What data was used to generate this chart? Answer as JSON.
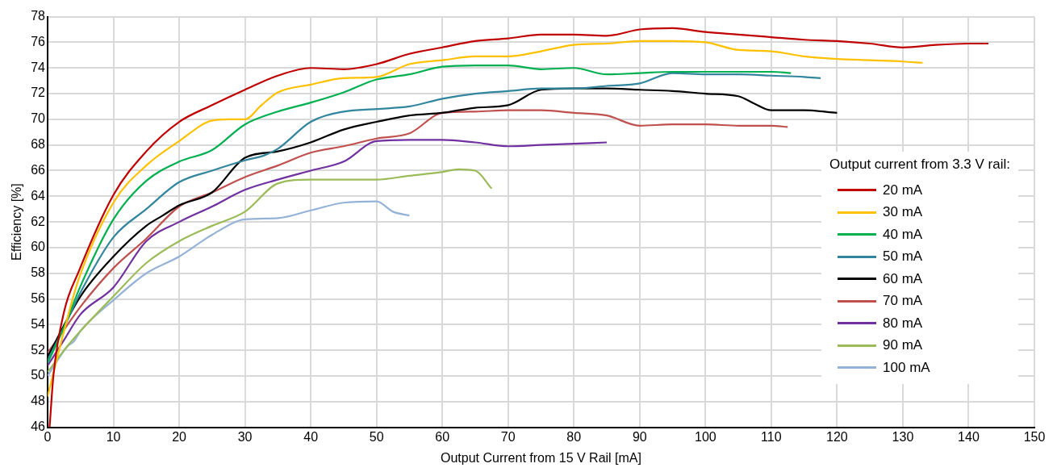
{
  "chart_data": {
    "type": "line",
    "xlabel": "Output Current from 15 V Rail [mA]",
    "ylabel": "Efficiency [%]",
    "legend_title": "Output current from 3.3 V rail:",
    "legend": "right",
    "grid": true,
    "line_style": "solid",
    "marker": "none",
    "xlim": [
      0,
      150
    ],
    "xticks": [
      0,
      10,
      20,
      30,
      40,
      50,
      60,
      70,
      80,
      90,
      100,
      110,
      120,
      130,
      140,
      150
    ],
    "ylim": [
      46,
      78
    ],
    "yticks": [
      46,
      48,
      50,
      52,
      54,
      56,
      58,
      60,
      62,
      64,
      66,
      68,
      70,
      72,
      74,
      76,
      78
    ],
    "series": [
      {
        "name": "20 mA",
        "color": "#c00000",
        "x": [
          0.3,
          0.9,
          2.5,
          4.7,
          10,
          15,
          20,
          25,
          30,
          35,
          40,
          45,
          50,
          55,
          60,
          65,
          70,
          75,
          80,
          85,
          90,
          95,
          100,
          105,
          110,
          115,
          120,
          125,
          130,
          135,
          140,
          143
        ],
        "values": [
          46,
          50.1,
          55,
          58.1,
          64.1,
          67.5,
          69.8,
          71.1,
          72.3,
          73.4,
          74,
          73.9,
          74.3,
          75.1,
          75.6,
          76.1,
          76.3,
          76.6,
          76.6,
          76.5,
          77,
          77.1,
          76.8,
          76.6,
          76.4,
          76.2,
          76.1,
          75.9,
          75.6,
          75.8,
          75.9,
          75.9
        ]
      },
      {
        "name": "30 mA",
        "color": "#ffc000",
        "x": [
          0,
          2.5,
          4.7,
          10,
          15,
          20,
          25,
          27.5,
          30,
          32.5,
          35,
          40,
          45,
          50,
          55,
          60,
          65,
          70,
          75,
          80,
          85,
          90,
          95,
          100,
          105,
          110,
          115,
          120,
          125,
          130,
          133
        ],
        "values": [
          48.4,
          53.5,
          57.5,
          63.5,
          66.4,
          68.3,
          69.9,
          70,
          70,
          71.1,
          72.1,
          72.7,
          73.2,
          73.3,
          74.3,
          74.6,
          74.9,
          74.9,
          75.3,
          75.8,
          75.9,
          76.1,
          76.1,
          76,
          75.4,
          75.3,
          74.9,
          74.7,
          74.6,
          74.5,
          74.4
        ]
      },
      {
        "name": "40 mA",
        "color": "#00b050",
        "x": [
          0,
          2.5,
          5,
          10,
          15,
          20,
          25,
          30,
          35,
          40,
          45,
          50,
          55,
          60,
          65,
          70,
          75,
          80,
          85,
          90,
          95,
          100,
          105,
          110,
          113
        ],
        "values": [
          51,
          53.8,
          57,
          62.2,
          65.2,
          66.7,
          67.6,
          69.6,
          70.6,
          71.3,
          72.1,
          73.1,
          73.5,
          74.1,
          74.2,
          74.2,
          73.9,
          74,
          73.5,
          73.6,
          73.7,
          73.7,
          73.7,
          73.7,
          73.6
        ]
      },
      {
        "name": "50 mA",
        "color": "#31859c",
        "x": [
          0,
          2.5,
          5,
          10,
          15,
          20,
          25,
          30,
          33,
          35,
          40,
          45,
          50,
          55,
          60,
          65,
          70,
          75,
          80,
          85,
          90,
          95,
          100,
          105,
          110,
          115,
          117.5
        ],
        "values": [
          51.2,
          53.8,
          56.5,
          60.8,
          63,
          65.1,
          66,
          66.8,
          67.2,
          67.7,
          69.8,
          70.6,
          70.8,
          71,
          71.6,
          72,
          72.2,
          72.4,
          72.4,
          72.6,
          72.8,
          73.6,
          73.5,
          73.5,
          73.4,
          73.3,
          73.2
        ]
      },
      {
        "name": "60 mA",
        "color": "#000000",
        "x": [
          0,
          5,
          10,
          15,
          17.5,
          20,
          25,
          30,
          35,
          40,
          45,
          50,
          55,
          60,
          65,
          70,
          75,
          80,
          85,
          90,
          95,
          100,
          105,
          107.5,
          110,
          115,
          120
        ],
        "values": [
          51.5,
          56.2,
          59.3,
          61.7,
          62.5,
          63.3,
          64.3,
          67,
          67.5,
          68.2,
          69.2,
          69.8,
          70.3,
          70.5,
          70.9,
          71.1,
          72.3,
          72.4,
          72.4,
          72.3,
          72.2,
          72,
          71.8,
          71.2,
          70.7,
          70.7,
          70.5
        ]
      },
      {
        "name": "70 mA",
        "color": "#c0504d",
        "x": [
          0,
          2.5,
          5,
          10,
          15,
          20,
          25,
          30,
          35,
          40,
          45,
          50,
          55,
          60,
          65,
          70,
          75,
          80,
          85,
          90,
          95,
          100,
          105,
          110,
          112.5
        ],
        "values": [
          51.8,
          53.6,
          55.4,
          58.4,
          60.7,
          63.2,
          64.3,
          65.5,
          66.4,
          67.4,
          67.9,
          68.5,
          68.9,
          70.5,
          70.6,
          70.7,
          70.7,
          70.5,
          70.3,
          69.5,
          69.6,
          69.6,
          69.5,
          69.5,
          69.4
        ]
      },
      {
        "name": "80 mA",
        "color": "#7030a0",
        "x": [
          0,
          2.5,
          5,
          10,
          15,
          20,
          25,
          30,
          35,
          40,
          45,
          50,
          55,
          60,
          65,
          70,
          75,
          80,
          85
        ],
        "values": [
          50.8,
          52.8,
          54.8,
          56.9,
          60.5,
          62,
          63.2,
          64.5,
          65.3,
          66,
          66.7,
          68.3,
          68.4,
          68.4,
          68.2,
          67.9,
          68,
          68.1,
          68.2
        ]
      },
      {
        "name": "90 mA",
        "color": "#9bbb59",
        "x": [
          0,
          2.5,
          5,
          10,
          15,
          20,
          25,
          30,
          35,
          40,
          45,
          50,
          55,
          60,
          62.5,
          65,
          67.5
        ],
        "values": [
          50.3,
          52,
          53.5,
          56.2,
          58.8,
          60.5,
          61.7,
          62.8,
          65,
          65.3,
          65.3,
          65.3,
          65.6,
          65.9,
          66.1,
          66,
          64.6
        ]
      },
      {
        "name": "100 mA",
        "color": "#95b3d7",
        "x": [
          0,
          2,
          3,
          4,
          5,
          10,
          15,
          20,
          25,
          30,
          35,
          40,
          45,
          50,
          52.5,
          55
        ],
        "values": [
          50,
          51.6,
          52.3,
          52.7,
          53.5,
          55.9,
          58,
          59.3,
          61,
          62.2,
          62.3,
          62.9,
          63.5,
          63.6,
          62.8,
          62.5
        ]
      }
    ]
  }
}
